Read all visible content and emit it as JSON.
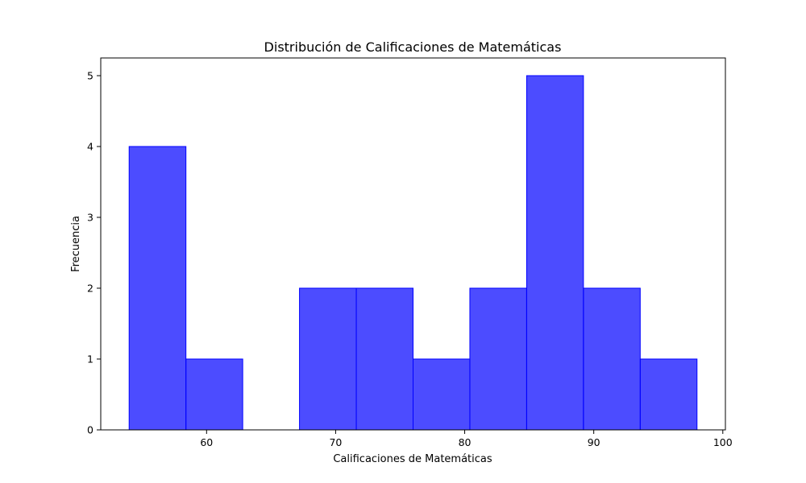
{
  "chart_data": {
    "type": "bar",
    "title": "Distribución de Calificaciones de Matemáticas",
    "xlabel": "Calificaciones de Matemáticas",
    "ylabel": "Frecuencia",
    "bins": [
      {
        "start": 54.0,
        "end": 58.4,
        "value": 4
      },
      {
        "start": 58.4,
        "end": 62.8,
        "value": 1
      },
      {
        "start": 62.8,
        "end": 67.2,
        "value": 0
      },
      {
        "start": 67.2,
        "end": 71.6,
        "value": 2
      },
      {
        "start": 71.6,
        "end": 76.0,
        "value": 2
      },
      {
        "start": 76.0,
        "end": 80.4,
        "value": 1
      },
      {
        "start": 80.4,
        "end": 84.8,
        "value": 2
      },
      {
        "start": 84.8,
        "end": 89.2,
        "value": 5
      },
      {
        "start": 89.2,
        "end": 93.6,
        "value": 2
      },
      {
        "start": 93.6,
        "end": 98.0,
        "value": 1
      }
    ],
    "xlim": [
      51.8,
      100.2
    ],
    "ylim": [
      0,
      5.25
    ],
    "xticks": [
      60,
      70,
      80,
      90,
      100
    ],
    "yticks": [
      0,
      1,
      2,
      3,
      4,
      5
    ],
    "bar_color": "#0000ff",
    "bar_opacity": 0.7,
    "grid": false
  }
}
